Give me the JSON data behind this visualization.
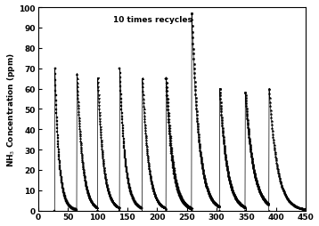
{
  "title": "10 times recycles",
  "ylabel": "NH$_3$ Concentration (ppm)",
  "xlabel": "",
  "xlim": [
    0,
    450
  ],
  "ylim": [
    0,
    100
  ],
  "xticks": [
    0,
    50,
    100,
    150,
    200,
    250,
    300,
    350,
    400,
    450
  ],
  "yticks": [
    0,
    10,
    20,
    30,
    40,
    50,
    60,
    70,
    80,
    90,
    100
  ],
  "background": "#ffffff",
  "cycles": [
    {
      "start": 28,
      "peak": 70,
      "decay_rate": 0.14,
      "marker": "s",
      "ms": 1.8
    },
    {
      "start": 65,
      "peak": 67,
      "decay_rate": 0.11,
      "marker": "^",
      "ms": 1.8
    },
    {
      "start": 100,
      "peak": 65,
      "decay_rate": 0.11,
      "marker": "v",
      "ms": 1.8
    },
    {
      "start": 137,
      "peak": 70,
      "decay_rate": 0.11,
      "marker": "s",
      "ms": 1.8
    },
    {
      "start": 175,
      "peak": 65,
      "decay_rate": 0.1,
      "marker": "^",
      "ms": 1.8
    },
    {
      "start": 215,
      "peak": 65,
      "decay_rate": 0.095,
      "marker": "D",
      "ms": 1.8
    },
    {
      "start": 258,
      "peak": 97,
      "decay_rate": 0.085,
      "marker": "o",
      "ms": 1.8
    },
    {
      "start": 305,
      "peak": 60,
      "decay_rate": 0.085,
      "marker": "o",
      "ms": 1.8
    },
    {
      "start": 348,
      "peak": 58,
      "decay_rate": 0.075,
      "marker": "o",
      "ms": 1.8
    },
    {
      "start": 388,
      "peak": 60,
      "decay_rate": 0.075,
      "marker": "*",
      "ms": 2.2
    }
  ],
  "line_color": "black",
  "n_points_decay": 120
}
